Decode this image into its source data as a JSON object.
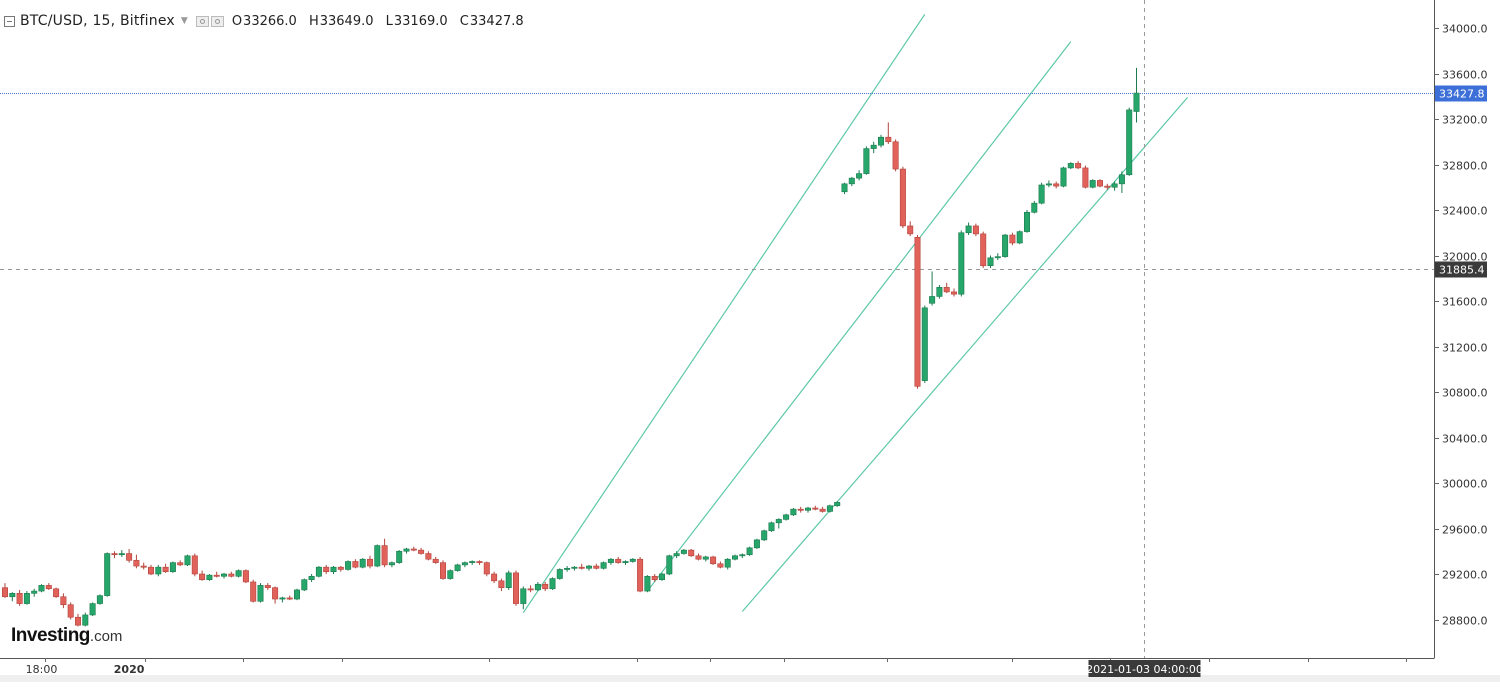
{
  "legend": {
    "symbol": "BTC/USD, 15, Bitfinex",
    "open_label": "O",
    "open": "33266.0",
    "high_label": "H",
    "high": "33649.0",
    "low_label": "L",
    "low": "33169.0",
    "close_label": "C",
    "close": "33427.8"
  },
  "brand": {
    "name": "Investing",
    "suffix": ".com"
  },
  "colors": {
    "up": "#26a66a",
    "down": "#e0625a",
    "channel": "#5cc8a8",
    "last_price_line": "#4a78d8",
    "last_price_badge": "#3d6fd8",
    "crosshair_badge": "#3a3a3a"
  },
  "chart_data": {
    "type": "candlestick",
    "symbol": "BTC/USD",
    "interval": "15",
    "exchange": "Bitfinex",
    "ylim": [
      28600,
      34400
    ],
    "y_ticks": [
      28800,
      29200,
      29600,
      30000,
      30400,
      30800,
      31200,
      31600,
      32000,
      32400,
      32800,
      33200,
      33600,
      34000
    ],
    "y_tick_labels": [
      "28800.0",
      "29200.0",
      "29600.0",
      "30000.0",
      "30400.0",
      "30800.0",
      "31200.0",
      "31600.0",
      "32000.0",
      "32400.0",
      "32800.0",
      "33200.0",
      "33600.0",
      "34000.0"
    ],
    "x_labels": [
      {
        "text": "18:00",
        "index": 5
      },
      {
        "text": "2020",
        "index": 17
      }
    ],
    "last_price": 33427.8,
    "last_price_label": "33427.8",
    "crosshair": {
      "price": 31885.4,
      "price_label": "31885.4",
      "index": 156,
      "time_label": "2021-01-03 04:00:00"
    },
    "candles": [
      [
        0,
        29080,
        29120,
        28990,
        29000
      ],
      [
        1,
        29000,
        29040,
        28960,
        29030
      ],
      [
        2,
        29030,
        29060,
        28920,
        28940
      ],
      [
        3,
        28940,
        29050,
        28930,
        29030
      ],
      [
        4,
        29030,
        29070,
        29000,
        29050
      ],
      [
        5,
        29050,
        29110,
        29040,
        29100
      ],
      [
        6,
        29100,
        29120,
        29060,
        29070
      ],
      [
        7,
        29070,
        29080,
        28990,
        29000
      ],
      [
        8,
        29000,
        29030,
        28900,
        28930
      ],
      [
        9,
        28930,
        28950,
        28800,
        28820
      ],
      [
        10,
        28820,
        28850,
        28740,
        28750
      ],
      [
        11,
        28750,
        28860,
        28740,
        28840
      ],
      [
        12,
        28840,
        28950,
        28830,
        28940
      ],
      [
        13,
        28940,
        29020,
        28930,
        29010
      ],
      [
        14,
        29010,
        29390,
        29000,
        29380
      ],
      [
        15,
        29380,
        29400,
        29340,
        29370
      ],
      [
        16,
        29370,
        29410,
        29350,
        29380
      ],
      [
        17,
        29380,
        29420,
        29300,
        29320
      ],
      [
        18,
        29320,
        29370,
        29250,
        29270
      ],
      [
        19,
        29270,
        29300,
        29240,
        29260
      ],
      [
        20,
        29260,
        29280,
        29190,
        29200
      ],
      [
        21,
        29200,
        29280,
        29180,
        29260
      ],
      [
        22,
        29260,
        29290,
        29210,
        29220
      ],
      [
        23,
        29220,
        29310,
        29210,
        29300
      ],
      [
        24,
        29300,
        29320,
        29270,
        29280
      ],
      [
        25,
        29280,
        29370,
        29270,
        29360
      ],
      [
        26,
        29360,
        29380,
        29180,
        29200
      ],
      [
        27,
        29200,
        29230,
        29140,
        29150
      ],
      [
        28,
        29150,
        29200,
        29140,
        29190
      ],
      [
        29,
        29190,
        29220,
        29170,
        29180
      ],
      [
        30,
        29180,
        29210,
        29160,
        29200
      ],
      [
        31,
        29200,
        29220,
        29170,
        29180
      ],
      [
        32,
        29180,
        29240,
        29170,
        29230
      ],
      [
        33,
        29230,
        29240,
        29120,
        29130
      ],
      [
        34,
        29130,
        29150,
        28950,
        28960
      ],
      [
        35,
        28960,
        29120,
        28950,
        29100
      ],
      [
        36,
        29100,
        29120,
        29060,
        29080
      ],
      [
        37,
        29080,
        29090,
        28940,
        28980
      ],
      [
        38,
        28980,
        29000,
        28950,
        28990
      ],
      [
        39,
        28990,
        29010,
        28970,
        28980
      ],
      [
        40,
        28980,
        29070,
        28970,
        29060
      ],
      [
        41,
        29060,
        29160,
        29050,
        29150
      ],
      [
        42,
        29150,
        29200,
        29130,
        29180
      ],
      [
        43,
        29180,
        29270,
        29170,
        29260
      ],
      [
        44,
        29260,
        29280,
        29200,
        29220
      ],
      [
        45,
        29220,
        29270,
        29200,
        29260
      ],
      [
        46,
        29260,
        29270,
        29220,
        29240
      ],
      [
        47,
        29240,
        29320,
        29230,
        29310
      ],
      [
        48,
        29310,
        29330,
        29250,
        29260
      ],
      [
        49,
        29260,
        29340,
        29250,
        29330
      ],
      [
        50,
        29330,
        29360,
        29250,
        29270
      ],
      [
        51,
        29270,
        29460,
        29260,
        29450
      ],
      [
        52,
        29450,
        29510,
        29260,
        29280
      ],
      [
        53,
        29280,
        29310,
        29260,
        29300
      ],
      [
        54,
        29300,
        29410,
        29290,
        29400
      ],
      [
        55,
        29400,
        29430,
        29380,
        29420
      ],
      [
        56,
        29420,
        29440,
        29400,
        29410
      ],
      [
        57,
        29410,
        29430,
        29370,
        29380
      ],
      [
        58,
        29380,
        29400,
        29320,
        29330
      ],
      [
        59,
        29330,
        29350,
        29290,
        29300
      ],
      [
        60,
        29300,
        29320,
        29150,
        29160
      ],
      [
        61,
        29160,
        29240,
        29150,
        29230
      ],
      [
        62,
        29230,
        29290,
        29220,
        29280
      ],
      [
        63,
        29280,
        29310,
        29260,
        29300
      ],
      [
        64,
        29300,
        29320,
        29280,
        29310
      ],
      [
        65,
        29310,
        29320,
        29280,
        29300
      ],
      [
        66,
        29300,
        29310,
        29180,
        29200
      ],
      [
        67,
        29200,
        29220,
        29120,
        29140
      ],
      [
        68,
        29140,
        29160,
        29050,
        29080
      ],
      [
        69,
        29080,
        29230,
        29060,
        29210
      ],
      [
        70,
        29210,
        29230,
        28920,
        28940
      ],
      [
        71,
        28940,
        29090,
        28890,
        29070
      ],
      [
        72,
        29070,
        29100,
        29040,
        29060
      ],
      [
        73,
        29060,
        29130,
        29050,
        29110
      ],
      [
        74,
        29110,
        29130,
        29050,
        29070
      ],
      [
        75,
        29070,
        29170,
        29060,
        29160
      ],
      [
        76,
        29160,
        29250,
        29150,
        29240
      ],
      [
        77,
        29240,
        29270,
        29220,
        29250
      ],
      [
        78,
        29250,
        29270,
        29230,
        29260
      ],
      [
        79,
        29260,
        29290,
        29240,
        29250
      ],
      [
        80,
        29250,
        29280,
        29230,
        29270
      ],
      [
        81,
        29270,
        29290,
        29240,
        29250
      ],
      [
        82,
        29250,
        29310,
        29240,
        29300
      ],
      [
        83,
        29300,
        29340,
        29280,
        29330
      ],
      [
        84,
        29330,
        29350,
        29290,
        29300
      ],
      [
        85,
        29300,
        29320,
        29280,
        29310
      ],
      [
        86,
        29310,
        29340,
        29300,
        29330
      ],
      [
        87,
        29330,
        29350,
        29040,
        29050
      ],
      [
        88,
        29050,
        29190,
        29040,
        29180
      ],
      [
        89,
        29180,
        29200,
        29130,
        29150
      ],
      [
        90,
        29150,
        29210,
        29140,
        29200
      ],
      [
        91,
        29200,
        29370,
        29190,
        29360
      ],
      [
        92,
        29360,
        29400,
        29340,
        29380
      ],
      [
        93,
        29380,
        29420,
        29370,
        29410
      ],
      [
        94,
        29410,
        29420,
        29350,
        29360
      ],
      [
        95,
        29360,
        29380,
        29320,
        29330
      ],
      [
        96,
        29330,
        29360,
        29310,
        29350
      ],
      [
        97,
        29350,
        29360,
        29280,
        29290
      ],
      [
        98,
        29290,
        29310,
        29250,
        29260
      ],
      [
        99,
        29260,
        29340,
        29240,
        29330
      ],
      [
        100,
        29330,
        29370,
        29320,
        29360
      ],
      [
        101,
        29360,
        29380,
        29340,
        29370
      ],
      [
        102,
        29370,
        29440,
        29360,
        29430
      ],
      [
        103,
        29430,
        29510,
        29420,
        29500
      ],
      [
        104,
        29500,
        29590,
        29490,
        29580
      ],
      [
        105,
        29580,
        29660,
        29570,
        29650
      ],
      [
        106,
        29650,
        29690,
        29600,
        29680
      ],
      [
        107,
        29680,
        29730,
        29670,
        29720
      ],
      [
        108,
        29720,
        29780,
        29710,
        29770
      ],
      [
        109,
        29770,
        29790,
        29740,
        29760
      ],
      [
        110,
        29760,
        29790,
        29740,
        29780
      ],
      [
        111,
        29780,
        29800,
        29760,
        29770
      ],
      [
        112,
        29770,
        29790,
        29740,
        29750
      ],
      [
        113,
        29750,
        29810,
        29740,
        29800
      ],
      [
        114,
        29800,
        29840,
        29790,
        29830
      ],
      [
        115,
        32560,
        32640,
        32540,
        32630
      ],
      [
        116,
        32630,
        32690,
        32610,
        32680
      ],
      [
        117,
        32680,
        32750,
        32660,
        32720
      ],
      [
        118,
        32720,
        32960,
        32710,
        32940
      ],
      [
        119,
        32940,
        33000,
        32900,
        32970
      ],
      [
        120,
        32970,
        33060,
        32950,
        33040
      ],
      [
        121,
        33040,
        33170,
        32980,
        33000
      ],
      [
        122,
        33000,
        33020,
        32740,
        32760
      ],
      [
        123,
        32760,
        32780,
        32240,
        32260
      ],
      [
        124,
        32260,
        32300,
        32170,
        32190
      ],
      [
        125,
        32160,
        32180,
        30830,
        30850
      ],
      [
        126,
        30900,
        31560,
        30880,
        31540
      ],
      [
        127,
        31580,
        31860,
        31560,
        31640
      ],
      [
        128,
        31640,
        31740,
        31620,
        31720
      ],
      [
        129,
        31720,
        31760,
        31670,
        31680
      ],
      [
        130,
        31680,
        31710,
        31640,
        31660
      ],
      [
        131,
        31660,
        32220,
        31640,
        32200
      ],
      [
        132,
        32200,
        32290,
        32180,
        32260
      ],
      [
        133,
        32260,
        32280,
        32170,
        32190
      ],
      [
        134,
        32190,
        32210,
        31890,
        31910
      ],
      [
        135,
        31910,
        32000,
        31890,
        31980
      ],
      [
        136,
        31980,
        32020,
        31960,
        31990
      ],
      [
        137,
        31990,
        32190,
        31980,
        32180
      ],
      [
        138,
        32180,
        32200,
        32090,
        32110
      ],
      [
        139,
        32110,
        32220,
        32100,
        32210
      ],
      [
        140,
        32210,
        32400,
        32200,
        32380
      ],
      [
        141,
        32380,
        32480,
        32370,
        32460
      ],
      [
        142,
        32460,
        32640,
        32450,
        32620
      ],
      [
        143,
        32620,
        32660,
        32600,
        32630
      ],
      [
        144,
        32630,
        32650,
        32590,
        32610
      ],
      [
        145,
        32610,
        32780,
        32600,
        32770
      ],
      [
        146,
        32770,
        32820,
        32760,
        32810
      ],
      [
        147,
        32810,
        32830,
        32760,
        32770
      ],
      [
        148,
        32770,
        32790,
        32590,
        32600
      ],
      [
        149,
        32600,
        32670,
        32590,
        32660
      ],
      [
        150,
        32660,
        32670,
        32600,
        32610
      ],
      [
        151,
        32610,
        32630,
        32580,
        32600
      ],
      [
        152,
        32600,
        32650,
        32570,
        32630
      ],
      [
        153,
        32630,
        32740,
        32550,
        32710
      ],
      [
        154,
        32710,
        33300,
        32700,
        33280
      ],
      [
        155,
        33266,
        33649,
        33169,
        33427.8
      ]
    ],
    "channel_lines": [
      {
        "from": [
          71,
          28860
        ],
        "to": [
          126,
          34120
        ]
      },
      {
        "from": [
          88,
          29050
        ],
        "to": [
          146,
          33880
        ]
      },
      {
        "from": [
          101,
          28870
        ],
        "to": [
          162,
          33390
        ]
      }
    ]
  }
}
